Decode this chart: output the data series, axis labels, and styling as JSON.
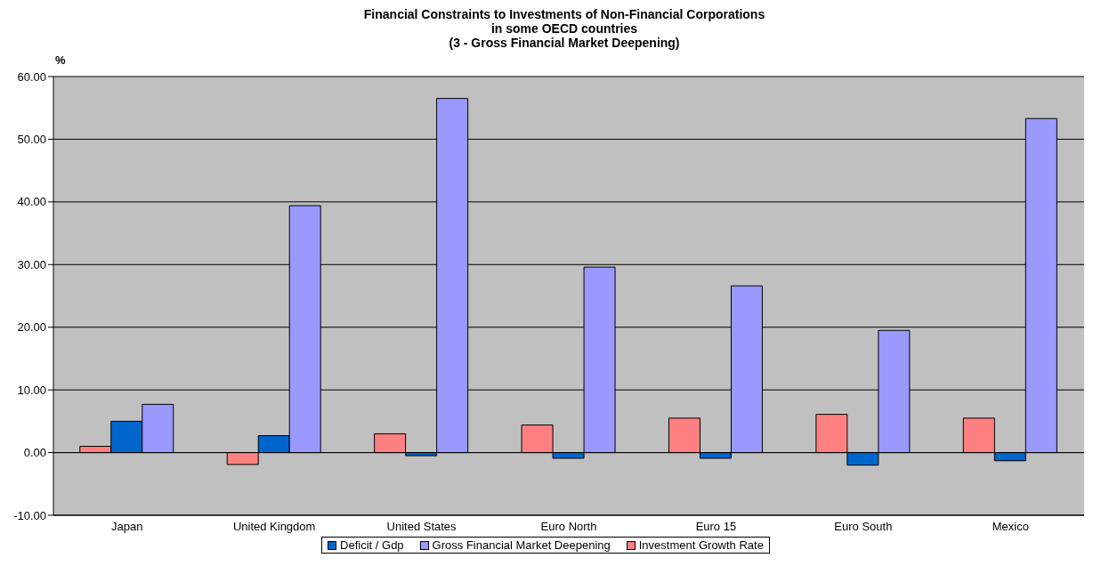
{
  "chart_data": {
    "type": "bar",
    "title": "Financial Constraints to Investments of Non-Financial Corporations\nin some  OECD countries\n(3 - Gross Financial Market Deepening)",
    "ylabel": "%",
    "categories": [
      "Japan",
      "United Kingdom",
      "United States",
      "Euro North",
      "Euro 15",
      "Euro South",
      "Mexico"
    ],
    "series": [
      {
        "name": "Investment Growth Rate",
        "color": "#ff8080",
        "values": [
          1.0,
          -1.9,
          3.0,
          4.4,
          5.5,
          6.1,
          5.5
        ]
      },
      {
        "name": "Deficit / Gdp",
        "color": "#0066cc",
        "values": [
          5.0,
          2.7,
          -0.5,
          -0.9,
          -0.9,
          -2.0,
          -1.3
        ]
      },
      {
        "name": "Gross Financial Market Deepening",
        "color": "#9999ff",
        "values": [
          7.7,
          39.4,
          56.5,
          29.6,
          26.6,
          19.5,
          53.3
        ]
      }
    ],
    "ylim": [
      -10,
      60
    ],
    "yticks": [
      {
        "value": -10,
        "label": "-10.00"
      },
      {
        "value": 0,
        "label": "0.00"
      },
      {
        "value": 10,
        "label": "10.00"
      },
      {
        "value": 20,
        "label": "20.00"
      },
      {
        "value": 30,
        "label": "30.00"
      },
      {
        "value": 40,
        "label": "40.00"
      },
      {
        "value": 50,
        "label": "50.00"
      },
      {
        "value": 60,
        "label": "60.00"
      }
    ],
    "grid": "y",
    "legend": "bottom"
  }
}
